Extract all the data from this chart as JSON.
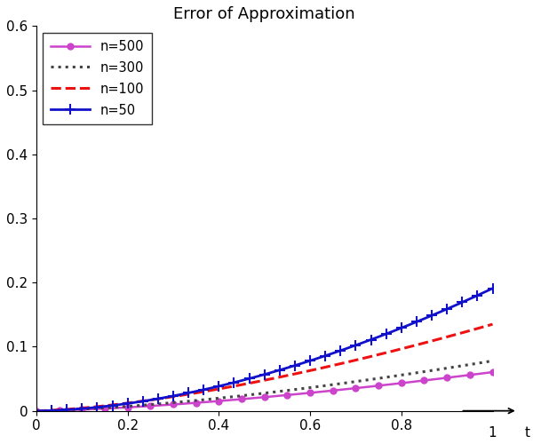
{
  "title": "Error of Approximation",
  "xlim": [
    0,
    1
  ],
  "ylim": [
    0,
    0.6
  ],
  "xticks": [
    0,
    0.2,
    0.4,
    0.6,
    0.8
  ],
  "yticks": [
    0.0,
    0.1,
    0.2,
    0.3,
    0.4,
    0.5,
    0.6
  ],
  "series": [
    {
      "label": "n=500",
      "n": 500,
      "color": "#CC44CC",
      "linestyle": "-",
      "marker": "o",
      "markersize": 5,
      "linewidth": 1.8,
      "scale": 1.35,
      "exponent": 1.5
    },
    {
      "label": "n=300",
      "n": 300,
      "color": "#444444",
      "linestyle": ":",
      "marker": "None",
      "markersize": 0,
      "linewidth": 2.2,
      "scale": 1.35,
      "exponent": 1.5
    },
    {
      "label": "n=100",
      "n": 100,
      "color": "#EE1111",
      "linestyle": "--",
      "marker": "None",
      "markersize": 0,
      "linewidth": 2.2,
      "scale": 1.35,
      "exponent": 1.5
    },
    {
      "label": "n=50",
      "n": 50,
      "color": "#1111CC",
      "linestyle": "-",
      "marker": "+",
      "markersize": 8,
      "linewidth": 2.0,
      "scale": 1.35,
      "exponent": 1.75
    }
  ],
  "n_markers_circle": 21,
  "n_markers_plus": 31,
  "background_color": "#ffffff",
  "title_fontsize": 13,
  "legend_fontsize": 10.5,
  "tick_fontsize": 11,
  "figwidth": 6.0,
  "figheight": 5.0,
  "dpi": 100
}
